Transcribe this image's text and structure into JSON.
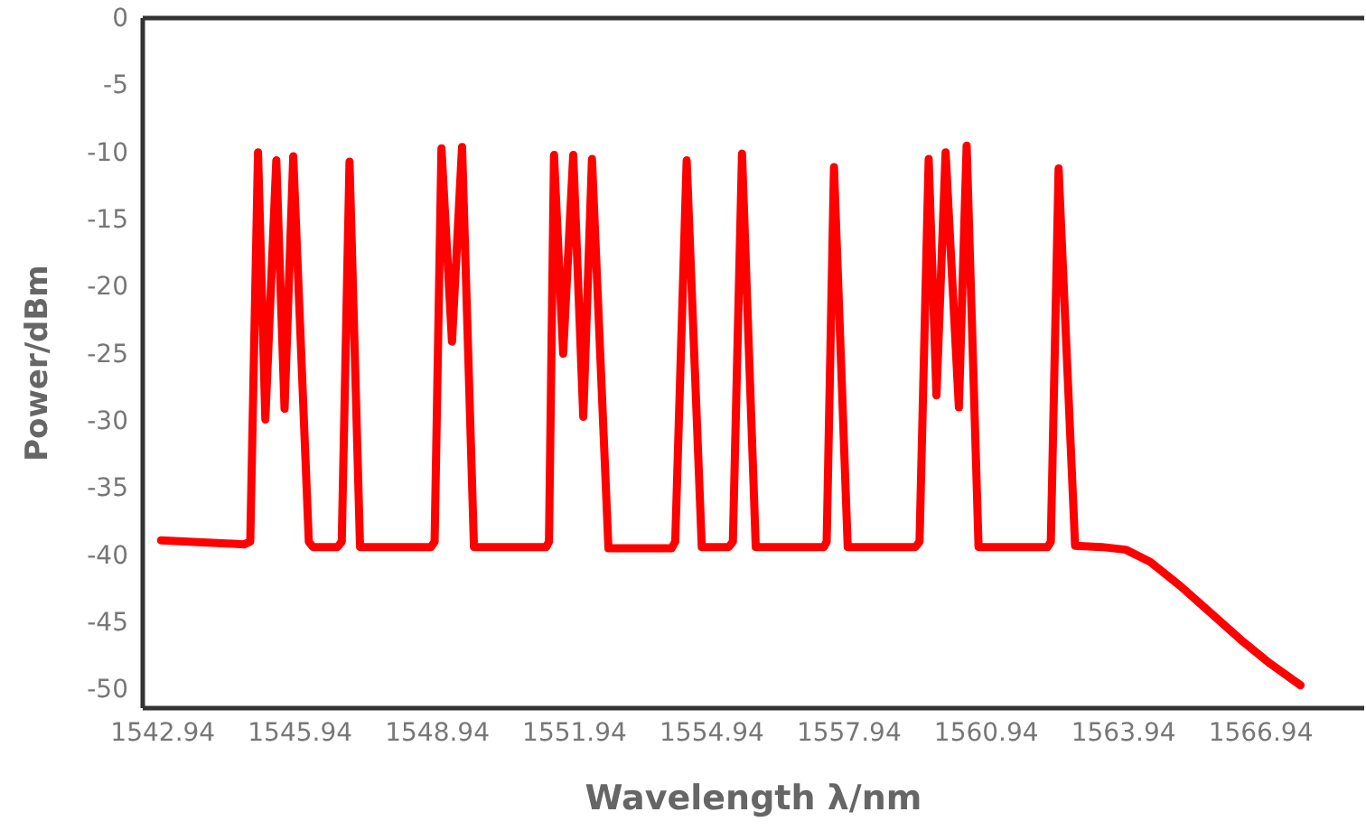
{
  "chart_data": {
    "type": "line",
    "xlabel": "Wavelength λ/nm",
    "ylabel": "Power/dBm",
    "xlim": [
      1542.5,
      1569.2
    ],
    "xticks": [
      {
        "value": 1542.94,
        "label": "1542.94"
      },
      {
        "value": 1545.94,
        "label": "1545.94"
      },
      {
        "value": 1548.94,
        "label": "1548.94"
      },
      {
        "value": 1551.94,
        "label": "1551.94"
      },
      {
        "value": 1554.94,
        "label": "1554.94"
      },
      {
        "value": 1557.94,
        "label": "1557.94"
      },
      {
        "value": 1560.94,
        "label": "1560.94"
      },
      {
        "value": 1563.94,
        "label": "1563.94"
      },
      {
        "value": 1566.94,
        "label": "1566.94"
      }
    ],
    "ylim": [
      -51.4,
      0
    ],
    "yticks": [
      0,
      -5,
      -10,
      -15,
      -20,
      -25,
      -30,
      -35,
      -40,
      -45,
      -50
    ],
    "grid": false,
    "marker": "none",
    "line_style": "solid",
    "x": [
      1542.9,
      1544.72,
      1544.85,
      1545.02,
      1545.18,
      1545.42,
      1545.6,
      1545.79,
      1546.13,
      1546.22,
      1546.76,
      1546.85,
      1547.02,
      1547.25,
      1548.8,
      1548.88,
      1549.03,
      1549.26,
      1549.48,
      1549.74,
      1551.32,
      1551.38,
      1551.49,
      1551.69,
      1551.91,
      1552.13,
      1552.32,
      1552.68,
      1554.06,
      1554.14,
      1554.39,
      1554.72,
      1555.31,
      1555.4,
      1555.6,
      1555.9,
      1557.39,
      1557.45,
      1557.61,
      1557.91,
      1559.39,
      1559.48,
      1559.68,
      1559.85,
      1560.05,
      1560.34,
      1560.51,
      1560.77,
      1562.28,
      1562.35,
      1562.52,
      1562.88,
      1563.47,
      1563.99,
      1564.52,
      1565.18,
      1565.84,
      1566.5,
      1567.15,
      1567.81
    ],
    "series": [
      {
        "color": "#ff0000",
        "values": [
          -38.9,
          -39.2,
          -39.0,
          -10.0,
          -29.9,
          -10.6,
          -29.1,
          -10.3,
          -39.0,
          -39.4,
          -39.4,
          -39.0,
          -10.7,
          -39.4,
          -39.4,
          -39.0,
          -9.7,
          -24.1,
          -9.6,
          -39.4,
          -39.4,
          -39.0,
          -10.2,
          -25.0,
          -10.2,
          -29.7,
          -10.5,
          -39.5,
          -39.5,
          -39.0,
          -10.6,
          -39.4,
          -39.4,
          -39.0,
          -10.1,
          -39.4,
          -39.4,
          -39.0,
          -11.1,
          -39.4,
          -39.4,
          -39.0,
          -10.5,
          -28.1,
          -10.0,
          -29.0,
          -9.5,
          -39.4,
          -39.4,
          -39.0,
          -11.2,
          -39.3,
          -39.4,
          -39.6,
          -40.5,
          -42.3,
          -44.3,
          -46.3,
          -48.1,
          -49.7
        ]
      }
    ]
  }
}
